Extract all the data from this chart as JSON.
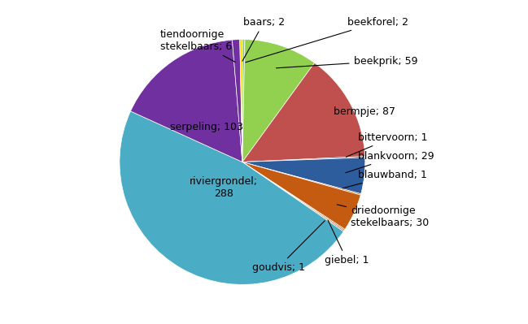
{
  "labels": [
    "beekforel; 2",
    "beekprik; 59",
    "bermpje; 87",
    "bittervoorn; 1",
    "blankvoorn; 29",
    "blauwband; 1",
    "driedoornige\nstekelbaars; 30",
    "giebel; 1",
    "goudvis; 1",
    "riviergrondel;\n288",
    "serpeling; 103",
    "tiendoornige\nstekelbaars; 6",
    "baars; 2"
  ],
  "values": [
    2,
    59,
    87,
    1,
    29,
    1,
    30,
    1,
    1,
    288,
    103,
    6,
    2
  ],
  "colors": [
    "#92d050",
    "#92d050",
    "#c0504d",
    "#1f3864",
    "#2e5d9e",
    "#c55a11",
    "#c55a11",
    "#c55a11",
    "#c55a11",
    "#4bacc6",
    "#7030a0",
    "#7030a0",
    "#ffd700"
  ],
  "startangle": 90,
  "background_color": "#ffffff"
}
